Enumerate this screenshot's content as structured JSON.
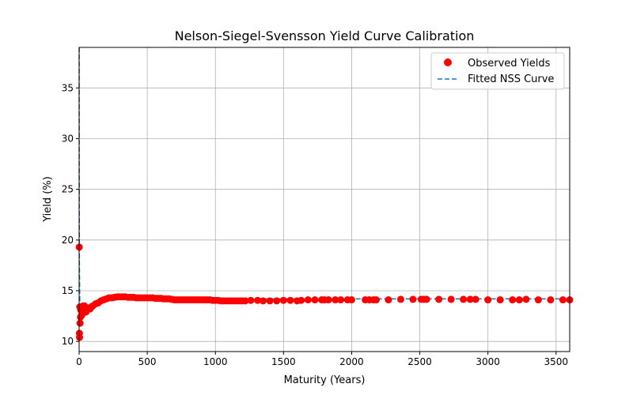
{
  "chart_data": {
    "type": "scatter",
    "title": "Nelson-Siegel-Svensson Yield Curve Calibration",
    "xlabel": "Maturity (Years)",
    "ylabel": "Yield (%)",
    "xlim": [
      0,
      3600
    ],
    "ylim": [
      9,
      39
    ],
    "xticks": [
      0,
      500,
      1000,
      1500,
      2000,
      2500,
      3000,
      3500
    ],
    "yticks": [
      10,
      15,
      20,
      25,
      30,
      35
    ],
    "grid": true,
    "legend_position": "top-right",
    "series": [
      {
        "name": "Observed Yields",
        "kind": "scatter",
        "color": "#ff0000",
        "x": [
          1,
          2,
          3,
          5,
          7,
          10,
          12,
          15,
          20,
          25,
          30,
          40,
          50,
          60,
          70,
          80,
          90,
          100,
          120,
          140,
          160,
          180,
          200,
          220,
          240,
          260,
          280,
          300,
          320,
          340,
          360,
          380,
          400,
          420,
          440,
          460,
          480,
          500,
          520,
          540,
          560,
          580,
          600,
          620,
          640,
          660,
          680,
          700,
          720,
          740,
          760,
          780,
          800,
          820,
          840,
          860,
          880,
          900,
          920,
          940,
          960,
          980,
          1000,
          1020,
          1040,
          1060,
          1080,
          1100,
          1120,
          1140,
          1160,
          1180,
          1200,
          1220,
          1260,
          1310,
          1350,
          1400,
          1450,
          1500,
          1550,
          1600,
          1630,
          1680,
          1730,
          1780,
          1800,
          1830,
          1880,
          1920,
          1970,
          2000,
          2100,
          2130,
          2160,
          2180,
          2270,
          2360,
          2450,
          2510,
          2530,
          2550,
          2640,
          2730,
          2820,
          2870,
          2910,
          3000,
          3090,
          3180,
          3230,
          3280,
          3370,
          3460,
          3550,
          3600
        ],
        "y": [
          19.3,
          10.8,
          10.4,
          13.4,
          11.8,
          12.4,
          13.1,
          13.2,
          12.6,
          13.0,
          13.5,
          13.5,
          12.9,
          13.1,
          13.3,
          13.2,
          13.4,
          13.5,
          13.7,
          13.8,
          14.0,
          14.1,
          14.2,
          14.3,
          14.3,
          14.35,
          14.4,
          14.4,
          14.4,
          14.4,
          14.35,
          14.35,
          14.35,
          14.3,
          14.3,
          14.3,
          14.3,
          14.3,
          14.3,
          14.3,
          14.25,
          14.25,
          14.25,
          14.2,
          14.2,
          14.2,
          14.15,
          14.1,
          14.1,
          14.1,
          14.1,
          14.1,
          14.1,
          14.1,
          14.1,
          14.1,
          14.1,
          14.1,
          14.1,
          14.1,
          14.1,
          14.05,
          14.05,
          14.05,
          14.0,
          14.0,
          14.0,
          14.0,
          14.0,
          14.0,
          14.0,
          14.0,
          14.0,
          14.0,
          14.05,
          14.05,
          14.0,
          14.0,
          14.0,
          14.05,
          14.05,
          14.0,
          14.05,
          14.1,
          14.1,
          14.1,
          14.1,
          14.1,
          14.1,
          14.1,
          14.1,
          14.1,
          14.1,
          14.1,
          14.1,
          14.1,
          14.1,
          14.15,
          14.15,
          14.15,
          14.15,
          14.15,
          14.15,
          14.15,
          14.15,
          14.15,
          14.15,
          14.1,
          14.1,
          14.1,
          14.1,
          14.15,
          14.1,
          14.1,
          14.1,
          14.1
        ]
      },
      {
        "name": "Fitted NSS Curve",
        "kind": "line",
        "style": "dashed",
        "color": "#1f77b4",
        "x": [
          0.5,
          1,
          2,
          3,
          5,
          8,
          12,
          20,
          30,
          50,
          80,
          120,
          160,
          200,
          250,
          300,
          350,
          400,
          500,
          600,
          800,
          1000,
          1500,
          2000,
          2500,
          3000,
          3600
        ],
        "y": [
          39,
          26,
          18,
          16,
          14.0,
          13.0,
          12.6,
          12.7,
          12.9,
          13.2,
          13.5,
          13.8,
          14.0,
          14.1,
          14.2,
          14.2,
          14.2,
          14.2,
          14.2,
          14.2,
          14.2,
          14.2,
          14.2,
          14.2,
          14.2,
          14.2,
          14.2
        ]
      }
    ]
  }
}
